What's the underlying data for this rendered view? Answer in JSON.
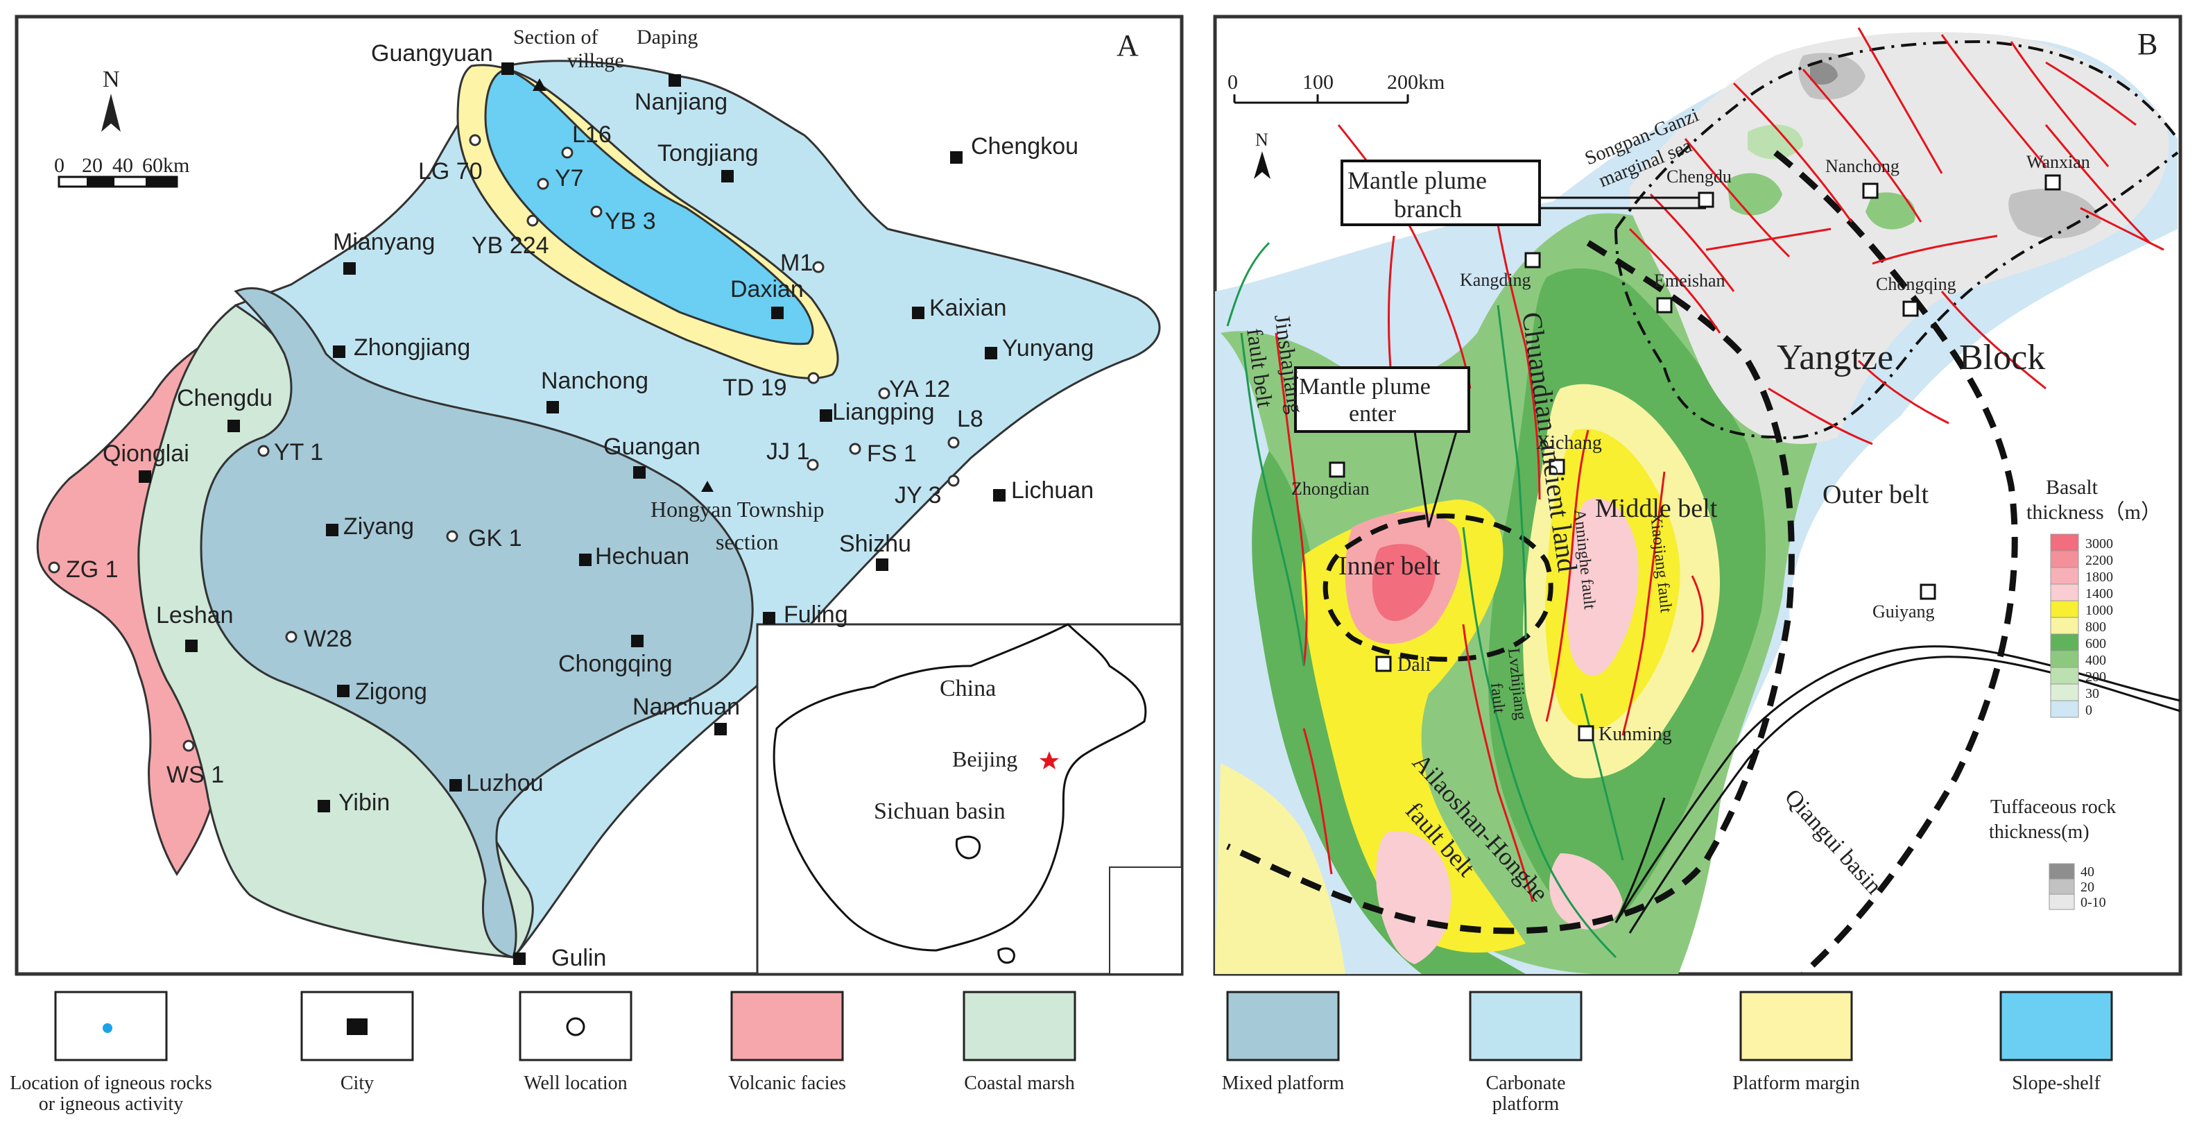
{
  "panel_a": {
    "letter": "A",
    "north": "N",
    "scale": {
      "t0": "0",
      "t1": "20",
      "t2": "40",
      "t3": "60km"
    },
    "section_daping": {
      "line1": "Section of",
      "line2": "Daping",
      "line3": "village"
    },
    "hongyan": {
      "line1": "Hongyan Township",
      "line2": "section"
    },
    "cities": {
      "guangyuan": "Guangyuan",
      "nanjiang": "Nanjiang",
      "tongjiang": "Tongjiang",
      "chengkou": "Chengkou",
      "mianyang": "Mianyang",
      "daxian": "Daxian",
      "kaixian": "Kaixian",
      "yunyang": "Yunyang",
      "zhongjiang": "Zhongjiang",
      "nanchong": "Nanchong",
      "liangping": "Liangping",
      "chengdu": "Chengdu",
      "qionglai": "Qionglai",
      "guangan": "Guangan",
      "lichuan": "Lichuan",
      "ziyang": "Ziyang",
      "hechuan": "Hechuan",
      "shizhu": "Shizhu",
      "leshan": "Leshan",
      "fuling": "Fuling",
      "chongqing": "Chongqing",
      "zigong": "Zigong",
      "nanchuan": "Nanchuan",
      "luzhou": "Luzhou",
      "yibin": "Yibin",
      "gulin": "Gulin"
    },
    "wells": {
      "lg70": "LG 70",
      "l16": "L16",
      "y7": "Y7",
      "yb3": "YB 3",
      "yb224": "YB 224",
      "m1": "M1",
      "td19": "TD 19",
      "ya12": "YA 12",
      "l8": "L8",
      "jj1": "JJ 1",
      "fs1": "FS 1",
      "jy3": "JY 3",
      "yt1": "YT 1",
      "gk1": "GK 1",
      "zg1": "ZG 1",
      "w28": "W28",
      "ws1": "WS 1"
    },
    "inset": {
      "china": "China",
      "beijing": "Beijing",
      "sichuan": "Sichuan basin"
    }
  },
  "panel_b": {
    "letter": "B",
    "north": "N",
    "scale": {
      "t0": "0",
      "t1": "100",
      "t2": "200km"
    },
    "songpan": {
      "line1": "Songpan-Ganzi",
      "line2": "marginal sea"
    },
    "branch_box": {
      "line1": "Mantle plume",
      "line2": "branch"
    },
    "enter_box": {
      "line1": "Mantle plume",
      "line2": "enter"
    },
    "places": {
      "chengdu": "Chengdu",
      "nanchong": "Nanchong",
      "wanxian": "Wanxian",
      "kangding": "Kangding",
      "emeishan": "Emeishan",
      "chongqing": "Chongqing",
      "zhongdian": "Zhongdian",
      "xichang": "Xichang",
      "dali": "Dali",
      "kunming": "Kunming",
      "guiyang": "Guiyang"
    },
    "yangtze": "Yangtze",
    "block": "Block",
    "outer_belt": "Outer belt",
    "middle_belt": "Middle belt",
    "inner_belt": "Inner belt",
    "chuandian": "Chuandian ancient land",
    "jinshajiang": {
      "line1": "Jinshajiang",
      "line2": "fault belt"
    },
    "anninghe": "Anninghe fault",
    "xiaojiang": "Xiaojiang fault",
    "lvzhijiang": {
      "line1": "Lvzhijiang",
      "line2": "fault"
    },
    "ailaoshan": {
      "line1": "Ailaoshan-Honghe",
      "line2": "fault belt"
    },
    "qiangui": "Qiangui basin",
    "basalt_title": {
      "line1": "Basalt",
      "line2": "thickness（m）"
    },
    "basalt_ticks": [
      "3000",
      "2200",
      "1800",
      "1400",
      "1000",
      "800",
      "600",
      "400",
      "200",
      "30",
      "0"
    ],
    "basalt_colors": [
      "#f26d7d",
      "#f4909a",
      "#f7b0b7",
      "#f9cdd2",
      "#f7ef30",
      "#f9f4a2",
      "#60b35a",
      "#8cc97f",
      "#bce0b0",
      "#dcefd6",
      "#cfe6f4"
    ],
    "tuff_title": {
      "line1": "Tuffaceous rock",
      "line2": "thickness(m)"
    },
    "tuff_ticks": [
      "40",
      "20",
      "0-10"
    ],
    "tuff_colors": [
      "#8e8e8e",
      "#c2c2c2",
      "#e8e8e8"
    ]
  },
  "legend": [
    {
      "label": "Location of igneous rocks\nor igneous activity",
      "symbol": "blue-dot"
    },
    {
      "label": "City",
      "symbol": "square"
    },
    {
      "label": "Well location",
      "symbol": "circle"
    },
    {
      "label": "Volcanic facies",
      "symbol": "fill",
      "color": "#f6a7ab"
    },
    {
      "label": "Coastal marsh",
      "symbol": "fill",
      "color": "#cfe8d8"
    },
    {
      "label": "Mixed platform",
      "symbol": "fill",
      "color": "#a5c9d6"
    },
    {
      "label": "Carbonate\nplatform",
      "symbol": "fill",
      "color": "#bfe4f1"
    },
    {
      "label": "Platform margin",
      "symbol": "fill",
      "color": "#fdf4a8"
    },
    {
      "label": "Slope-shelf",
      "symbol": "fill",
      "color": "#6acff2"
    }
  ],
  "colors": {
    "volcanic": "#f6a7ab",
    "coastal": "#cfe8d8",
    "mixed": "#a5c9d6",
    "carbonate": "#bfe4f1",
    "margin": "#fdf4a8",
    "slope": "#6acff2",
    "fault": "#e5141b",
    "outline": "#333333"
  }
}
